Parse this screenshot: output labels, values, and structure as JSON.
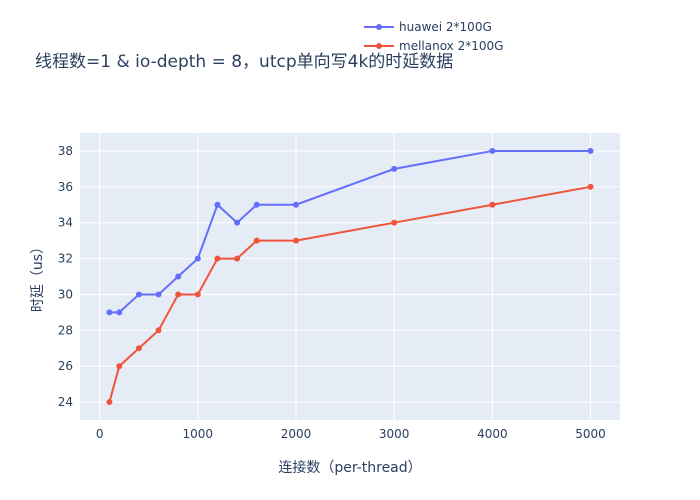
{
  "chart_data": {
    "type": "line",
    "title": "线程数=1 & io-depth = 8，utcp单向写4k的时延数据",
    "xlabel": "连接数（per-thread）",
    "ylabel": "时延（us）",
    "xlim": [
      -200,
      5300
    ],
    "ylim": [
      23,
      39
    ],
    "x_ticks": [
      0,
      1000,
      2000,
      3000,
      4000,
      5000
    ],
    "y_ticks": [
      24,
      26,
      28,
      30,
      32,
      34,
      36,
      38
    ],
    "grid": true,
    "legend_position": "top-right",
    "series": [
      {
        "name": "huawei 2*100G",
        "color": "#636efa",
        "x": [
          100,
          200,
          400,
          600,
          800,
          1000,
          1200,
          1400,
          1600,
          2000,
          3000,
          4000,
          5000
        ],
        "values": [
          29,
          29,
          30,
          30,
          31,
          32,
          35,
          34,
          35,
          35,
          37,
          38,
          38
        ]
      },
      {
        "name": "mellanox 2*100G",
        "color": "#ef553b",
        "x": [
          100,
          200,
          400,
          600,
          800,
          1000,
          1200,
          1400,
          1600,
          2000,
          3000,
          4000,
          5000
        ],
        "values": [
          24,
          26,
          27,
          28,
          30,
          30,
          32,
          32,
          33,
          33,
          34,
          35,
          36
        ]
      }
    ],
    "plot_background": "#e5ecf6",
    "grid_color": "#ffffff"
  }
}
